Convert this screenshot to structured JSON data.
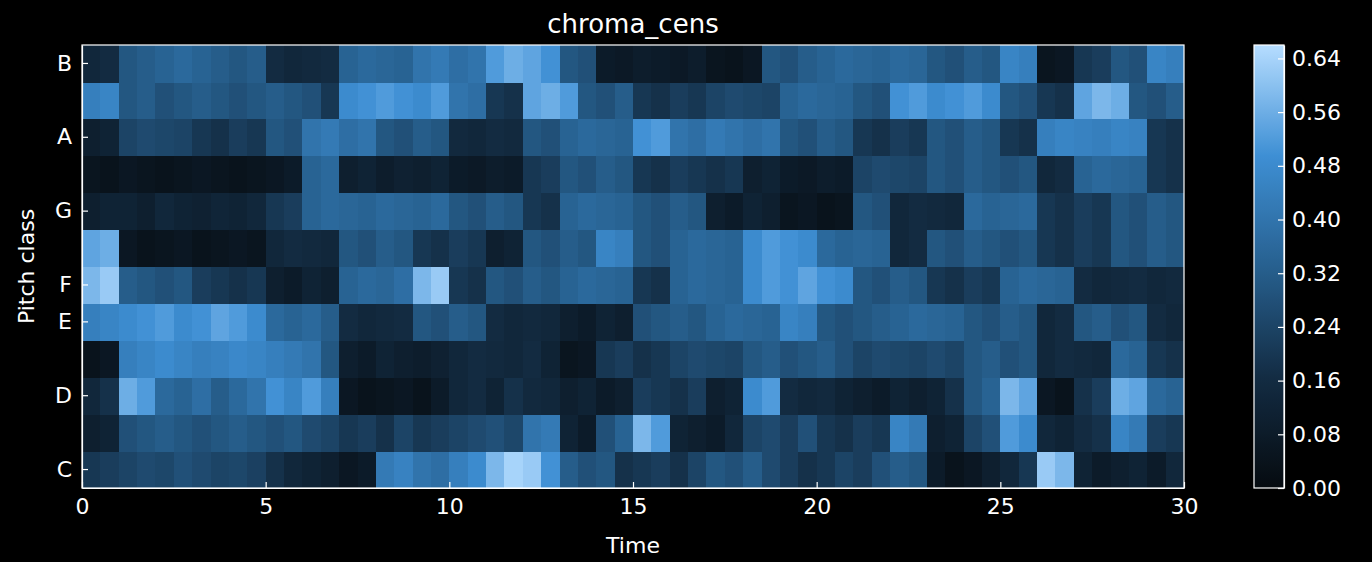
{
  "chart_data": {
    "type": "heatmap",
    "title": "chroma_cens",
    "x_label": "Time",
    "y_label": "Pitch class",
    "xlim": [
      0,
      30
    ],
    "xticks": [
      0,
      5,
      10,
      15,
      20,
      25,
      30
    ],
    "categories": [
      "C",
      null,
      "D",
      null,
      "E",
      "F",
      null,
      "G",
      null,
      "A",
      null,
      "B"
    ],
    "x": [
      0,
      0.5,
      1,
      1.5,
      2,
      2.5,
      3,
      3.5,
      4,
      4.5,
      5,
      5.5,
      6,
      6.5,
      7,
      7.5,
      8,
      8.5,
      9,
      9.5,
      10,
      10.5,
      11,
      11.5,
      12,
      12.5,
      13,
      13.5,
      14,
      14.5,
      15,
      15.5,
      16,
      16.5,
      17,
      17.5,
      18,
      18.5,
      19,
      19.5,
      20,
      20.5,
      21,
      21.5,
      22,
      22.5,
      23,
      23.5,
      24,
      24.5,
      25,
      25.5,
      26,
      26.5,
      27,
      27.5,
      28,
      28.5,
      29,
      29.5
    ],
    "values": [
      [
        0.2,
        0.22,
        0.24,
        0.26,
        0.25,
        0.28,
        0.26,
        0.24,
        0.25,
        0.23,
        0.18,
        0.14,
        0.12,
        0.1,
        0.06,
        0.08,
        0.42,
        0.45,
        0.4,
        0.38,
        0.44,
        0.48,
        0.58,
        0.64,
        0.62,
        0.5,
        0.32,
        0.28,
        0.3,
        0.18,
        0.2,
        0.22,
        0.18,
        0.24,
        0.3,
        0.28,
        0.32,
        0.26,
        0.22,
        0.18,
        0.2,
        0.24,
        0.22,
        0.28,
        0.32,
        0.3,
        0.08,
        0.04,
        0.06,
        0.1,
        0.14,
        0.2,
        0.62,
        0.58,
        0.12,
        0.08,
        0.1,
        0.12,
        0.08,
        0.14
      ],
      [
        0.1,
        0.12,
        0.28,
        0.3,
        0.32,
        0.3,
        0.28,
        0.3,
        0.32,
        0.3,
        0.28,
        0.3,
        0.26,
        0.24,
        0.2,
        0.22,
        0.18,
        0.24,
        0.2,
        0.22,
        0.24,
        0.26,
        0.28,
        0.25,
        0.4,
        0.42,
        0.12,
        0.08,
        0.28,
        0.34,
        0.58,
        0.52,
        0.12,
        0.1,
        0.08,
        0.14,
        0.24,
        0.26,
        0.22,
        0.28,
        0.2,
        0.18,
        0.22,
        0.2,
        0.46,
        0.42,
        0.1,
        0.12,
        0.24,
        0.28,
        0.52,
        0.48,
        0.14,
        0.12,
        0.16,
        0.18,
        0.46,
        0.42,
        0.22,
        0.2
      ],
      [
        0.14,
        0.18,
        0.56,
        0.52,
        0.36,
        0.34,
        0.38,
        0.32,
        0.36,
        0.4,
        0.5,
        0.46,
        0.52,
        0.44,
        0.06,
        0.04,
        0.05,
        0.06,
        0.04,
        0.08,
        0.14,
        0.16,
        0.12,
        0.18,
        0.15,
        0.14,
        0.1,
        0.12,
        0.08,
        0.1,
        0.22,
        0.2,
        0.18,
        0.22,
        0.1,
        0.12,
        0.48,
        0.52,
        0.16,
        0.14,
        0.15,
        0.12,
        0.1,
        0.08,
        0.12,
        0.1,
        0.12,
        0.18,
        0.3,
        0.34,
        0.58,
        0.54,
        0.06,
        0.04,
        0.18,
        0.22,
        0.56,
        0.54,
        0.36,
        0.34
      ],
      [
        0.04,
        0.06,
        0.44,
        0.46,
        0.48,
        0.46,
        0.44,
        0.45,
        0.47,
        0.46,
        0.44,
        0.42,
        0.4,
        0.3,
        0.1,
        0.08,
        0.12,
        0.1,
        0.09,
        0.11,
        0.14,
        0.16,
        0.15,
        0.14,
        0.16,
        0.12,
        0.05,
        0.06,
        0.2,
        0.22,
        0.18,
        0.2,
        0.24,
        0.26,
        0.25,
        0.24,
        0.3,
        0.32,
        0.28,
        0.3,
        0.32,
        0.28,
        0.24,
        0.26,
        0.25,
        0.24,
        0.26,
        0.24,
        0.3,
        0.32,
        0.28,
        0.3,
        0.14,
        0.16,
        0.15,
        0.14,
        0.36,
        0.34,
        0.2,
        0.18
      ],
      [
        0.44,
        0.46,
        0.48,
        0.5,
        0.52,
        0.48,
        0.5,
        0.54,
        0.52,
        0.48,
        0.36,
        0.34,
        0.36,
        0.32,
        0.16,
        0.14,
        0.15,
        0.16,
        0.3,
        0.28,
        0.32,
        0.3,
        0.16,
        0.14,
        0.15,
        0.14,
        0.1,
        0.08,
        0.12,
        0.1,
        0.28,
        0.3,
        0.32,
        0.3,
        0.34,
        0.36,
        0.35,
        0.34,
        0.46,
        0.44,
        0.3,
        0.28,
        0.3,
        0.32,
        0.34,
        0.36,
        0.35,
        0.34,
        0.3,
        0.28,
        0.32,
        0.3,
        0.14,
        0.16,
        0.3,
        0.32,
        0.28,
        0.3,
        0.16,
        0.14
      ],
      [
        0.58,
        0.62,
        0.32,
        0.3,
        0.28,
        0.3,
        0.22,
        0.2,
        0.18,
        0.2,
        0.1,
        0.08,
        0.12,
        0.1,
        0.34,
        0.36,
        0.35,
        0.38,
        0.58,
        0.62,
        0.2,
        0.18,
        0.3,
        0.28,
        0.32,
        0.3,
        0.34,
        0.36,
        0.35,
        0.34,
        0.2,
        0.18,
        0.34,
        0.36,
        0.35,
        0.34,
        0.48,
        0.52,
        0.5,
        0.54,
        0.5,
        0.48,
        0.3,
        0.28,
        0.32,
        0.3,
        0.2,
        0.18,
        0.22,
        0.2,
        0.34,
        0.36,
        0.35,
        0.34,
        0.16,
        0.14,
        0.15,
        0.16,
        0.14,
        0.15
      ],
      [
        0.54,
        0.56,
        0.06,
        0.04,
        0.05,
        0.06,
        0.04,
        0.05,
        0.06,
        0.05,
        0.14,
        0.16,
        0.15,
        0.14,
        0.3,
        0.28,
        0.32,
        0.3,
        0.2,
        0.18,
        0.22,
        0.2,
        0.1,
        0.12,
        0.3,
        0.28,
        0.32,
        0.3,
        0.46,
        0.44,
        0.3,
        0.28,
        0.34,
        0.36,
        0.35,
        0.34,
        0.48,
        0.52,
        0.5,
        0.48,
        0.36,
        0.34,
        0.35,
        0.34,
        0.14,
        0.16,
        0.3,
        0.28,
        0.32,
        0.3,
        0.28,
        0.3,
        0.2,
        0.18,
        0.22,
        0.2,
        0.3,
        0.28,
        0.32,
        0.3
      ],
      [
        0.1,
        0.12,
        0.12,
        0.1,
        0.14,
        0.12,
        0.11,
        0.13,
        0.12,
        0.14,
        0.2,
        0.22,
        0.34,
        0.36,
        0.35,
        0.34,
        0.36,
        0.35,
        0.34,
        0.36,
        0.3,
        0.28,
        0.32,
        0.3,
        0.2,
        0.18,
        0.34,
        0.36,
        0.35,
        0.34,
        0.3,
        0.28,
        0.32,
        0.3,
        0.1,
        0.08,
        0.12,
        0.1,
        0.05,
        0.06,
        0.04,
        0.05,
        0.3,
        0.28,
        0.14,
        0.16,
        0.15,
        0.14,
        0.36,
        0.34,
        0.35,
        0.36,
        0.2,
        0.18,
        0.22,
        0.2,
        0.3,
        0.28,
        0.32,
        0.3
      ],
      [
        0.05,
        0.04,
        0.06,
        0.05,
        0.04,
        0.05,
        0.06,
        0.05,
        0.04,
        0.05,
        0.06,
        0.08,
        0.34,
        0.36,
        0.1,
        0.12,
        0.09,
        0.11,
        0.1,
        0.12,
        0.08,
        0.07,
        0.09,
        0.08,
        0.2,
        0.22,
        0.3,
        0.28,
        0.32,
        0.3,
        0.2,
        0.18,
        0.22,
        0.2,
        0.18,
        0.2,
        0.1,
        0.12,
        0.08,
        0.07,
        0.09,
        0.08,
        0.24,
        0.26,
        0.25,
        0.24,
        0.3,
        0.28,
        0.32,
        0.3,
        0.28,
        0.3,
        0.14,
        0.16,
        0.34,
        0.36,
        0.35,
        0.34,
        0.2,
        0.18
      ],
      [
        0.1,
        0.12,
        0.24,
        0.26,
        0.25,
        0.24,
        0.2,
        0.18,
        0.22,
        0.2,
        0.3,
        0.28,
        0.4,
        0.42,
        0.38,
        0.4,
        0.3,
        0.28,
        0.32,
        0.3,
        0.15,
        0.14,
        0.16,
        0.15,
        0.3,
        0.28,
        0.34,
        0.36,
        0.35,
        0.34,
        0.5,
        0.52,
        0.4,
        0.38,
        0.42,
        0.4,
        0.38,
        0.4,
        0.3,
        0.28,
        0.32,
        0.3,
        0.2,
        0.18,
        0.22,
        0.2,
        0.3,
        0.28,
        0.32,
        0.3,
        0.2,
        0.18,
        0.44,
        0.46,
        0.45,
        0.44,
        0.46,
        0.45,
        0.2,
        0.18
      ],
      [
        0.44,
        0.46,
        0.3,
        0.32,
        0.28,
        0.3,
        0.32,
        0.3,
        0.28,
        0.3,
        0.32,
        0.3,
        0.28,
        0.2,
        0.48,
        0.5,
        0.52,
        0.5,
        0.48,
        0.52,
        0.4,
        0.38,
        0.2,
        0.18,
        0.54,
        0.56,
        0.52,
        0.3,
        0.28,
        0.32,
        0.2,
        0.18,
        0.22,
        0.2,
        0.24,
        0.26,
        0.25,
        0.24,
        0.34,
        0.36,
        0.35,
        0.34,
        0.3,
        0.28,
        0.5,
        0.52,
        0.48,
        0.5,
        0.52,
        0.48,
        0.3,
        0.28,
        0.2,
        0.18,
        0.54,
        0.58,
        0.56,
        0.3,
        0.28,
        0.32
      ],
      [
        0.14,
        0.16,
        0.3,
        0.32,
        0.34,
        0.36,
        0.34,
        0.32,
        0.3,
        0.32,
        0.16,
        0.14,
        0.15,
        0.16,
        0.34,
        0.36,
        0.35,
        0.34,
        0.4,
        0.42,
        0.38,
        0.4,
        0.52,
        0.56,
        0.54,
        0.5,
        0.3,
        0.28,
        0.08,
        0.07,
        0.09,
        0.08,
        0.07,
        0.09,
        0.05,
        0.04,
        0.06,
        0.3,
        0.28,
        0.32,
        0.34,
        0.36,
        0.35,
        0.34,
        0.36,
        0.35,
        0.3,
        0.28,
        0.32,
        0.3,
        0.46,
        0.44,
        0.05,
        0.06,
        0.2,
        0.22,
        0.3,
        0.28,
        0.46,
        0.44
      ]
    ],
    "colorbar": {
      "range": [
        0,
        0.66
      ],
      "ticks": [
        {
          "value": 0,
          "label": "0.00"
        },
        {
          "value": 0.08,
          "label": "0.08"
        },
        {
          "value": 0.16,
          "label": "0.16"
        },
        {
          "value": 0.24,
          "label": "0.24"
        },
        {
          "value": 0.32,
          "label": "0.32"
        },
        {
          "value": 0.4,
          "label": "0.40"
        },
        {
          "value": 0.48,
          "label": "0.48"
        },
        {
          "value": 0.56,
          "label": "0.56"
        },
        {
          "value": 0.64,
          "label": "0.64"
        }
      ]
    }
  }
}
